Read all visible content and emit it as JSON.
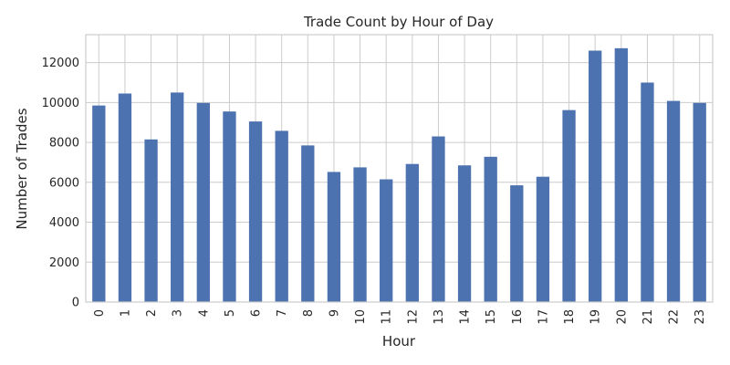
{
  "chart_data": {
    "type": "bar",
    "title": "Trade Count by Hour of Day",
    "xlabel": "Hour",
    "ylabel": "Number of Trades",
    "categories": [
      "0",
      "1",
      "2",
      "3",
      "4",
      "5",
      "6",
      "7",
      "8",
      "9",
      "10",
      "11",
      "12",
      "13",
      "14",
      "15",
      "16",
      "17",
      "18",
      "19",
      "20",
      "21",
      "22",
      "23"
    ],
    "values": [
      9850,
      10450,
      8150,
      10500,
      9980,
      9550,
      9050,
      8580,
      7850,
      6520,
      6750,
      6150,
      6920,
      8300,
      6850,
      7280,
      5850,
      6280,
      9620,
      12600,
      12720,
      11000,
      10080,
      9980
    ],
    "ylim": [
      0,
      13400
    ],
    "yticks": [
      0,
      2000,
      4000,
      6000,
      8000,
      10000,
      12000
    ],
    "grid": true,
    "bar_color": "#4c72b0",
    "tick_label_rotation": "vertical"
  }
}
